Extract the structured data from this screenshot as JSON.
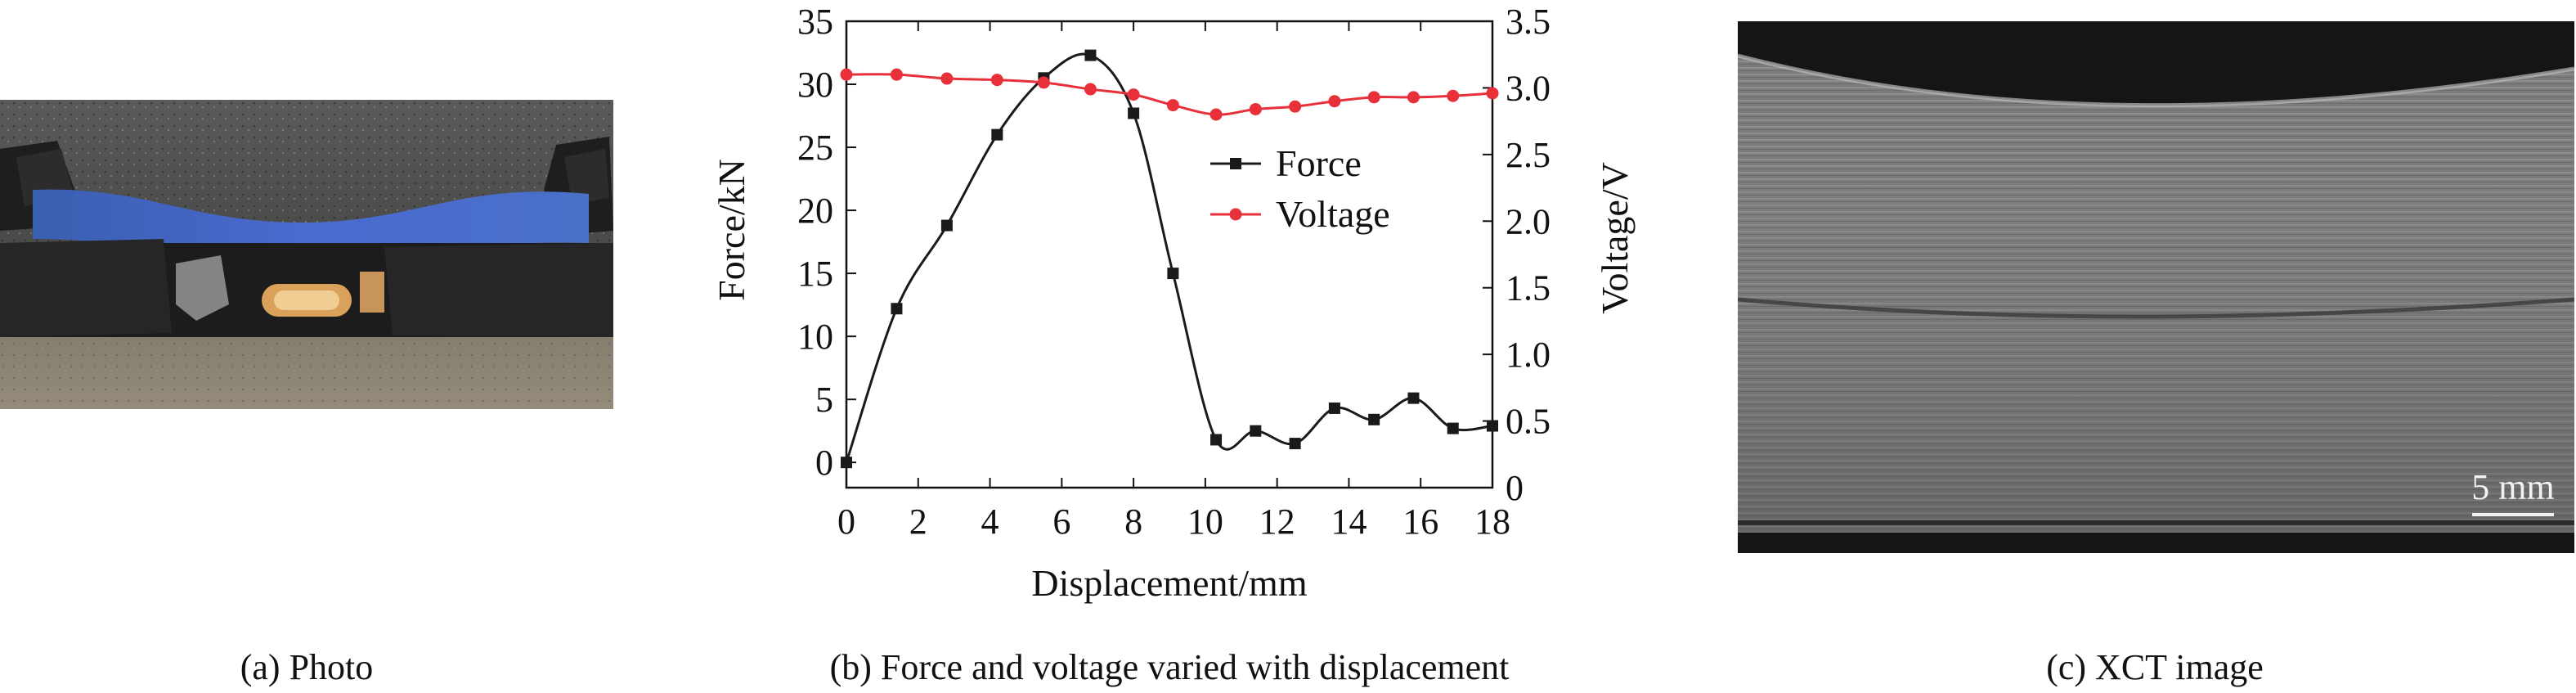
{
  "captions": {
    "a": "(a) Photo",
    "b": "(b) Force and voltage varied with displacement",
    "c": "(c) XCT image"
  },
  "xct": {
    "scale_label": "5 mm"
  },
  "colors": {
    "force": "#1a1a1a",
    "voltage": "#e8303a"
  },
  "chart_data": {
    "type": "line",
    "xlabel": "Displacement/mm",
    "ylabel_left": "Force/kN",
    "ylabel_right": "Voltage/V",
    "xlim": [
      0,
      18
    ],
    "ylim_left": [
      -2,
      35
    ],
    "ylim_right": [
      0,
      3.5
    ],
    "xticks": [
      0,
      2,
      4,
      6,
      8,
      10,
      12,
      14,
      16,
      18
    ],
    "yticks_left": [
      0,
      5,
      10,
      15,
      20,
      25,
      30,
      35
    ],
    "yticks_right": [
      0,
      0.5,
      1.0,
      1.5,
      2.0,
      2.5,
      3.0,
      3.5
    ],
    "ytick_labels_right": [
      "0",
      "0.5",
      "1.0",
      "1.5",
      "2.0",
      "2.5",
      "3.0",
      "3.5"
    ],
    "grid": false,
    "legend": "upper-right",
    "series": [
      {
        "name": "Force",
        "axis": "left",
        "marker": "square",
        "x": [
          0,
          1.4,
          2.8,
          4.2,
          5.5,
          6.8,
          8.0,
          9.1,
          10.3,
          11.4,
          12.5,
          13.6,
          14.7,
          15.8,
          16.9,
          18.0
        ],
        "y": [
          0,
          12.2,
          18.8,
          26.0,
          30.5,
          32.3,
          27.7,
          15.0,
          1.8,
          2.5,
          1.5,
          4.3,
          3.4,
          5.1,
          2.7,
          2.9
        ]
      },
      {
        "name": "Voltage",
        "axis": "right",
        "marker": "circle",
        "x": [
          0,
          1.4,
          2.8,
          4.2,
          5.5,
          6.8,
          8.0,
          9.1,
          10.3,
          11.4,
          12.5,
          13.6,
          14.7,
          15.8,
          16.9,
          18.0
        ],
        "y": [
          3.1,
          3.1,
          3.07,
          3.06,
          3.04,
          2.99,
          2.95,
          2.87,
          2.8,
          2.84,
          2.86,
          2.9,
          2.93,
          2.93,
          2.94,
          2.96
        ]
      }
    ]
  }
}
